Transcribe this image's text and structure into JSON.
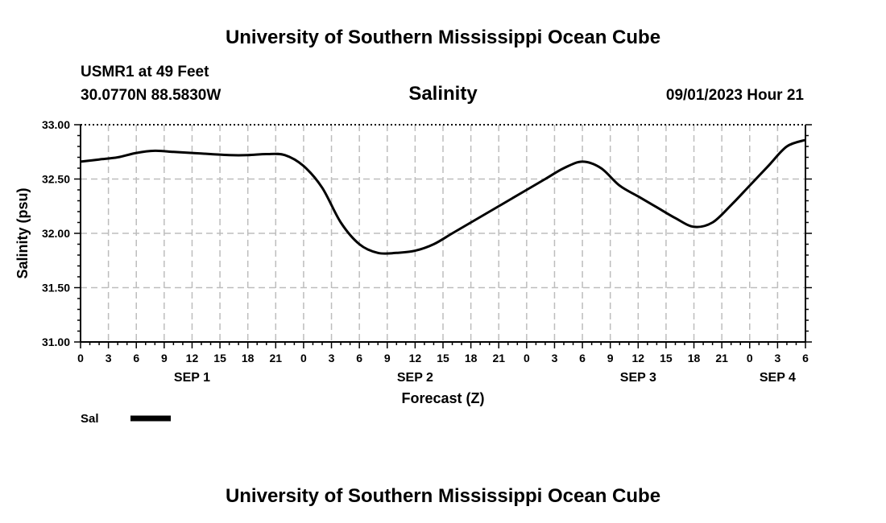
{
  "header": {
    "title": "University of Southern Mississippi Ocean Cube",
    "station": "USMR1 at 49 Feet",
    "coords": "30.0770N  88.5830W",
    "datetime": "09/01/2023 Hour 21",
    "footer_title": "University of Southern Mississippi Ocean Cube"
  },
  "chart_data": {
    "type": "line",
    "title": "Salinity",
    "xlabel": "Forecast (Z)",
    "ylabel": "Salinity (psu)",
    "ylim": [
      31.0,
      33.0
    ],
    "xlim": [
      0,
      78
    ],
    "y_ticks": [
      "31.00",
      "31.50",
      "32.00",
      "32.50",
      "33.00"
    ],
    "x_tick_labels": [
      "0",
      "3",
      "6",
      "9",
      "12",
      "15",
      "18",
      "21",
      "0",
      "3",
      "6",
      "9",
      "12",
      "15",
      "18",
      "21",
      "0",
      "3",
      "6",
      "9",
      "12",
      "15",
      "18",
      "21",
      "0",
      "3",
      "6"
    ],
    "day_labels": [
      {
        "label": "SEP 1",
        "hour": 12
      },
      {
        "label": "SEP 2",
        "hour": 36
      },
      {
        "label": "SEP 3",
        "hour": 60
      },
      {
        "label": "SEP 4",
        "hour": 75
      }
    ],
    "grid": true,
    "legend": [
      {
        "label": "Sal",
        "color": "#000000"
      }
    ],
    "series": [
      {
        "name": "Sal",
        "color": "#000000",
        "x": [
          0,
          2,
          4,
          6,
          8,
          10,
          12,
          14,
          16,
          18,
          20,
          22,
          24,
          26,
          28,
          30,
          32,
          34,
          36,
          38,
          40,
          42,
          44,
          46,
          48,
          50,
          52,
          54,
          56,
          58,
          60,
          62,
          64,
          66,
          68,
          70,
          72,
          74,
          76,
          78
        ],
        "values": [
          32.66,
          32.68,
          32.7,
          32.74,
          32.76,
          32.75,
          32.74,
          32.73,
          32.72,
          32.72,
          32.73,
          32.72,
          32.62,
          32.42,
          32.1,
          31.9,
          31.82,
          31.82,
          31.84,
          31.9,
          32.0,
          32.1,
          32.2,
          32.3,
          32.4,
          32.5,
          32.6,
          32.66,
          32.6,
          32.44,
          32.34,
          32.24,
          32.14,
          32.06,
          32.1,
          32.26,
          32.44,
          32.62,
          32.8,
          32.86
        ]
      }
    ]
  }
}
